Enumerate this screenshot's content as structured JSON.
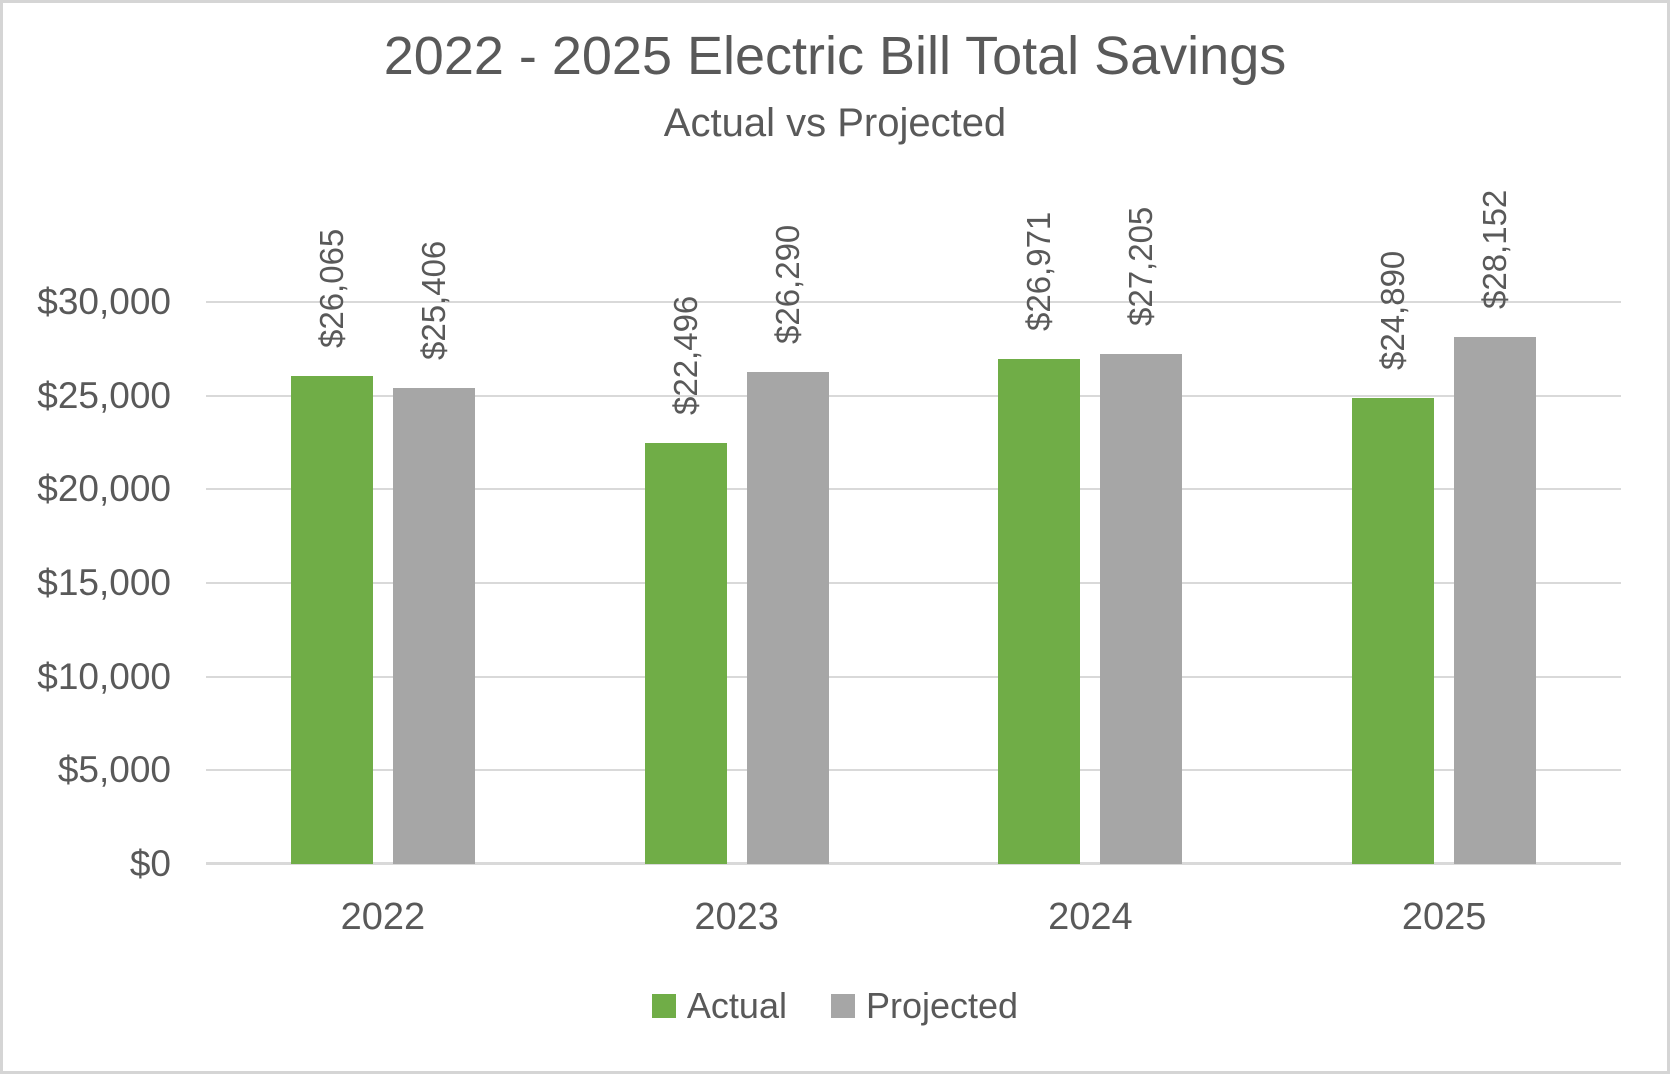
{
  "chart_data": {
    "type": "bar",
    "title": "2022 - 2025 Electric Bill Total Savings",
    "subtitle": "Actual vs Projected",
    "categories": [
      "2022",
      "2023",
      "2024",
      "2025"
    ],
    "series": [
      {
        "name": "Actual",
        "color": "#70AD47",
        "values": [
          26065,
          22496,
          26971,
          24890
        ]
      },
      {
        "name": "Projected",
        "color": "#A6A6A6",
        "values": [
          25406,
          26290,
          27205,
          28152
        ]
      }
    ],
    "data_labels": [
      "$26,065",
      "$25,406",
      "$22,496",
      "$26,290",
      "$26,971",
      "$27,205",
      "$24,890",
      "$28,152"
    ],
    "ytick_labels": [
      "$0",
      "$5,000",
      "$10,000",
      "$15,000",
      "$20,000",
      "$25,000",
      "$30,000"
    ],
    "ylim": [
      0,
      30000
    ],
    "ytick_step": 5000,
    "grid": true,
    "legend_position": "bottom",
    "data_label_style": "rotated-90-outside-end",
    "colors": {
      "text": "#595959",
      "gridline": "#D9D9D9",
      "canvas_border": "#D5D5D5",
      "background": "#FFFFFF"
    }
  }
}
